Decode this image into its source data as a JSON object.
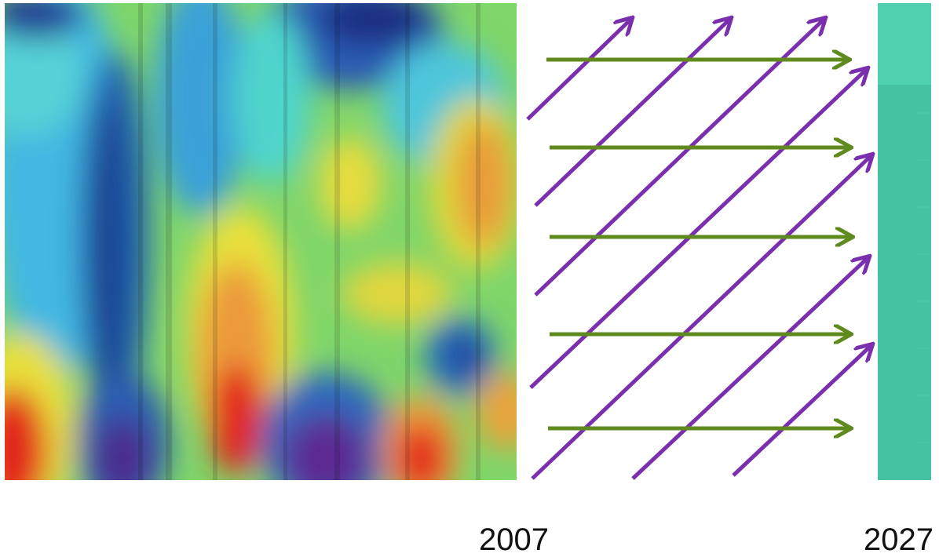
{
  "labels": {
    "year_start": "2007",
    "year_end": "2027"
  },
  "colors": {
    "purple_arrow": "#7a2fae",
    "green_arrow": "#5f8a1e",
    "bar_teal": "#45c2a2"
  },
  "heatmap_palette": [
    "#5a2a8e",
    "#1f3b9a",
    "#2b6fc0",
    "#3aa2de",
    "#4fd0d8",
    "#83e07a",
    "#d6e43a",
    "#f2a33a",
    "#e8301e"
  ]
}
